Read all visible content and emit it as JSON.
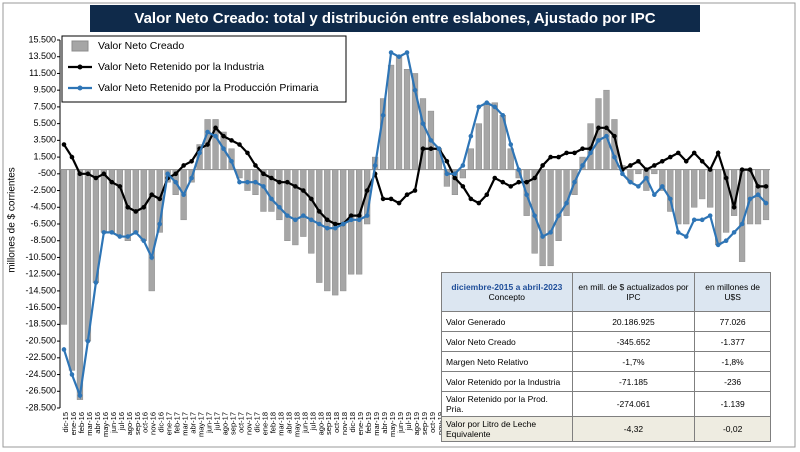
{
  "chart_data": {
    "type": "combo",
    "title": "Valor Neto Creado: total y distribución  entre eslabones, Ajustado  por IPC",
    "y_label": "millones de $ corrientes",
    "categories": [
      "dic-15",
      "ene-16",
      "feb-16",
      "mar-16",
      "abr-16",
      "may-16",
      "jun-16",
      "jul-16",
      "ago-16",
      "sep-16",
      "oct-16",
      "nov-16",
      "dic-16",
      "ene-17",
      "feb-17",
      "mar-17",
      "abr-17",
      "may-17",
      "jun-17",
      "jul-17",
      "ago-17",
      "sep-17",
      "oct-17",
      "nov-17",
      "dic-17",
      "ene-18",
      "feb-18",
      "mar-18",
      "abr-18",
      "may-18",
      "jun-18",
      "jul-18",
      "ago-18",
      "sep-18",
      "oct-18",
      "nov-18",
      "dic-18",
      "ene-19",
      "feb-19",
      "mar-19",
      "abr-19",
      "may-19",
      "jun-19",
      "jul-19",
      "ago-19",
      "sep-19",
      "oct-19",
      "nov-19",
      "dic-19",
      "ene-20",
      "feb-20",
      "mar-20",
      "abr-20",
      "may-20",
      "jun-20",
      "jul-20",
      "ago-20",
      "sep-20",
      "oct-20",
      "nov-20",
      "dic-20",
      "ene-21",
      "feb-21",
      "mar-21",
      "abr-21",
      "may-21",
      "jun-21",
      "jul-21",
      "ago-21",
      "sep-21",
      "oct-21",
      "nov-21",
      "dic-21",
      "ene-22",
      "feb-22",
      "mar-22",
      "abr-22",
      "may-22",
      "jun-22",
      "jul-22",
      "ago-22",
      "sep-22",
      "oct-22",
      "nov-22",
      "dic-22",
      "ene-23",
      "feb-23",
      "mar-23",
      "abr-23"
    ],
    "series": [
      {
        "name": "Valor Neto Creado",
        "kind": "bar",
        "color": "#a6a6a6",
        "values": [
          -18500,
          -24000,
          -27500,
          -20500,
          -13500,
          -7500,
          -7500,
          -8000,
          -8500,
          -7500,
          -8500,
          -14500,
          -7500,
          -1500,
          -3000,
          -6000,
          -1500,
          3000,
          6000,
          6000,
          4500,
          2500,
          -1000,
          -2500,
          -3000,
          -5000,
          -5000,
          -6000,
          -8500,
          -9000,
          -8000,
          -10000,
          -13500,
          -14500,
          -15000,
          -14500,
          -12500,
          -12500,
          -6500,
          1500,
          8500,
          12500,
          13500,
          12000,
          11500,
          8500,
          7000,
          2500,
          -2000,
          -3000,
          -1000,
          2500,
          5500,
          8000,
          8000,
          6500,
          2500,
          -1000,
          -5500,
          -10000,
          -11500,
          -11500,
          -8500,
          -5500,
          -3000,
          1500,
          5500,
          8500,
          9500,
          6000,
          500,
          -1500,
          -500,
          -2500,
          -500,
          -2500,
          -5000,
          -6500,
          -6500,
          -4500,
          -3500,
          -4500,
          -9000,
          -7500,
          -5500,
          -11000,
          -6500,
          -6500,
          -6000
        ]
      },
      {
        "name": "Valor Neto Retenido por la Industria",
        "kind": "line",
        "color": "#000000",
        "values": [
          3000,
          1500,
          -500,
          -500,
          -1000,
          -500,
          -1500,
          -2000,
          -4500,
          -5000,
          -4500,
          -3000,
          -3500,
          -1000,
          -500,
          500,
          1000,
          2500,
          3000,
          5000,
          4000,
          3500,
          3000,
          2000,
          500,
          -500,
          -1000,
          -1500,
          -1500,
          -2000,
          -2500,
          -3500,
          -5000,
          -6000,
          -6500,
          -6500,
          -5500,
          -5500,
          -2500,
          -500,
          -3500,
          -3500,
          -4000,
          -3000,
          -2500,
          2500,
          2500,
          2500,
          1000,
          -1000,
          -2000,
          -3500,
          -4000,
          -3000,
          -1000,
          -1500,
          -2000,
          -1500,
          -1500,
          -1000,
          500,
          1500,
          1500,
          2000,
          2000,
          2500,
          2500,
          5000,
          5000,
          4000,
          0,
          500,
          1000,
          0,
          500,
          1000,
          1500,
          2000,
          1000,
          2000,
          1000,
          0,
          2000,
          -1000,
          -4500,
          0,
          0,
          -2000,
          -2000
        ]
      },
      {
        "name": "Valor Neto Retenido por la Producción Primaria",
        "kind": "line",
        "color": "#2e75b6",
        "values": [
          -21500,
          -24500,
          -27000,
          -20500,
          -13500,
          -7500,
          -7500,
          -8000,
          -8000,
          -7500,
          -8500,
          -10500,
          -6500,
          -500,
          -1500,
          -3000,
          -1000,
          2000,
          4500,
          4000,
          2500,
          1000,
          -1500,
          -1500,
          -1500,
          -2000,
          -3500,
          -4500,
          -5500,
          -6000,
          -5500,
          -6000,
          -6500,
          -7000,
          -7000,
          -6500,
          -6000,
          -6000,
          -5500,
          500,
          6500,
          14000,
          13500,
          14000,
          9500,
          5500,
          3500,
          2500,
          -500,
          -500,
          500,
          4000,
          7500,
          8000,
          7500,
          6500,
          3000,
          0,
          -3000,
          -5500,
          -8000,
          -7500,
          -5500,
          -4000,
          -1500,
          500,
          2000,
          3500,
          4000,
          1500,
          -500,
          -1500,
          -2000,
          -1000,
          -3000,
          -2000,
          -3500,
          -7500,
          -8000,
          -6000,
          -6000,
          -5500,
          -9000,
          -8500,
          -7500,
          -6500,
          -3500,
          -3000,
          -4000
        ]
      }
    ],
    "ylim": [
      -28500,
      15500
    ],
    "yticks": [
      {
        "value": 15500,
        "label": "15.500"
      },
      {
        "value": 13500,
        "label": "13.500"
      },
      {
        "value": 11500,
        "label": "11.500"
      },
      {
        "value": 9500,
        "label": "9.500"
      },
      {
        "value": 7500,
        "label": "7.500"
      },
      {
        "value": 5500,
        "label": "5.500"
      },
      {
        "value": 3500,
        "label": "3.500"
      },
      {
        "value": 1500,
        "label": "1.500"
      },
      -500,
      {
        "value": -2500,
        "label": "-2.500"
      },
      {
        "value": -4500,
        "label": "-4.500"
      },
      {
        "value": -6500,
        "label": "-6.500"
      },
      {
        "value": -8500,
        "label": "-8.500"
      },
      {
        "value": -10500,
        "label": "-10.500"
      },
      {
        "value": -12500,
        "label": "-12.500"
      },
      {
        "value": -14500,
        "label": "-14.500"
      },
      {
        "value": -16500,
        "label": "-16.500"
      },
      {
        "value": -18500,
        "label": "-18.500"
      },
      {
        "value": -20500,
        "label": "-20.500"
      },
      {
        "value": -22500,
        "label": "-22.500"
      },
      {
        "value": -24500,
        "label": "-24.500"
      },
      {
        "value": -26500,
        "label": "-26.500"
      },
      {
        "value": -28500,
        "label": "-28.500"
      }
    ],
    "grid": false
  },
  "table": {
    "header_period": "diciembre-2015 a abril-2023",
    "header_concept": "Concepto",
    "col_ars": "en mill. de $ actualizados por IPC",
    "col_usd": "en millones de U$S",
    "rows": [
      [
        "Valor Generado",
        "20.186.925",
        "77.026"
      ],
      [
        "Valor Neto Creado",
        "-345.652",
        "-1.377"
      ],
      [
        "Margen Neto Relativo",
        "-1,7%",
        "-1,8%"
      ],
      [
        "Valor Retenido por la Industria",
        "-71.185",
        "-236"
      ],
      [
        "Valor Retenido por la Prod. Pria.",
        "-274.061",
        "-1.139"
      ],
      [
        "Valor por Litro de Leche Equivalente",
        "-4,32",
        "-0,02"
      ]
    ]
  }
}
